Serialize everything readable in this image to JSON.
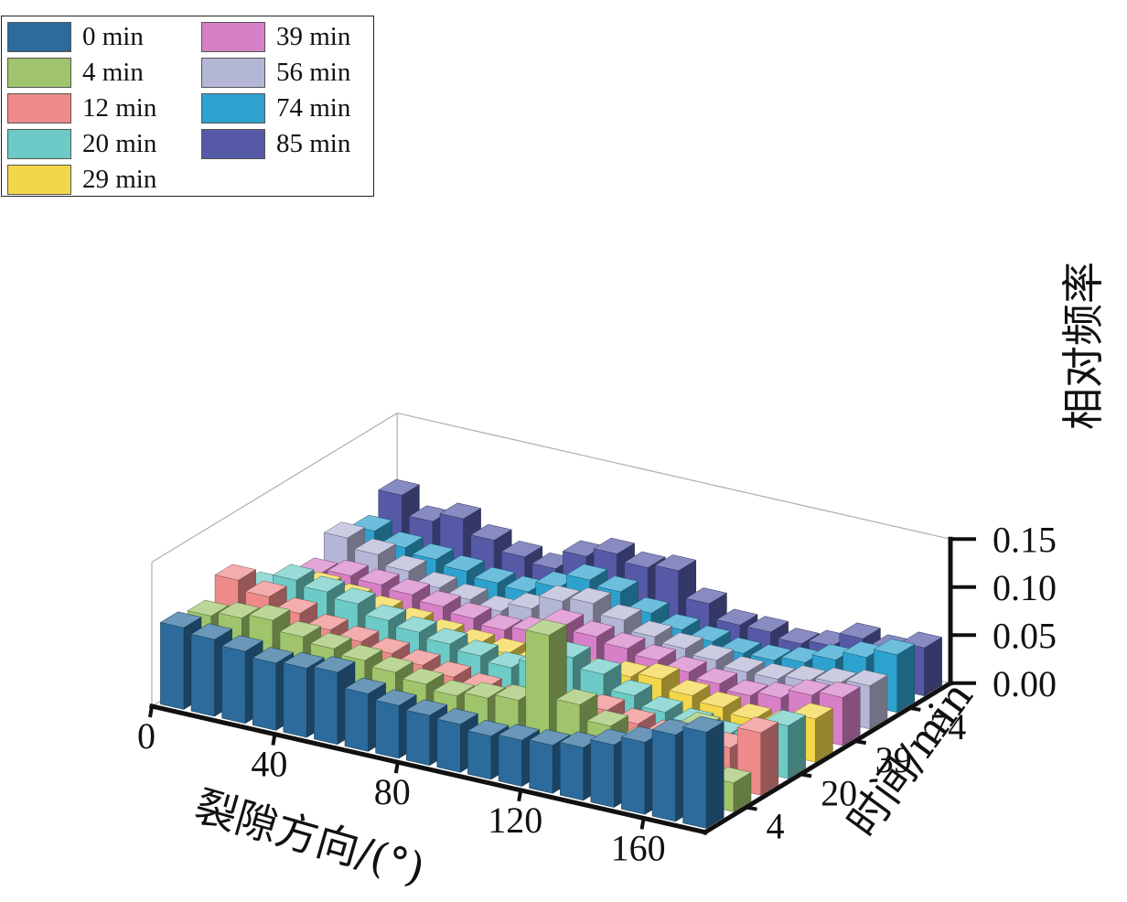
{
  "chart_data": {
    "type": "bar3d",
    "title": "",
    "xlabel": "裂隙方向/(°)",
    "ylabel": "时间/min",
    "zlabel": "相对频率",
    "x_ticks": [
      "0",
      "40",
      "80",
      "120",
      "160"
    ],
    "y_ticks": [
      "4",
      "20",
      "39",
      "74"
    ],
    "z_ticks": [
      "0.00",
      "0.05",
      "0.10",
      "0.15"
    ],
    "zlim": [
      0,
      0.15
    ],
    "categories": [
      0,
      10,
      20,
      30,
      40,
      50,
      60,
      70,
      80,
      90,
      100,
      110,
      120,
      130,
      140,
      150,
      160,
      170
    ],
    "series": [
      {
        "name": "0 min",
        "color": "#2c6b9b",
        "values": [
          0.085,
          0.08,
          0.075,
          0.07,
          0.072,
          0.075,
          0.06,
          0.055,
          0.052,
          0.05,
          0.045,
          0.048,
          0.05,
          0.055,
          0.065,
          0.075,
          0.09,
          0.1
        ]
      },
      {
        "name": "4 min",
        "color": "#9fc46b",
        "values": [
          0.08,
          0.085,
          0.09,
          0.08,
          0.075,
          0.07,
          0.065,
          0.06,
          0.055,
          0.06,
          0.065,
          0.14,
          0.075,
          0.06,
          0.05,
          0.06,
          0.08,
          0.03
        ]
      },
      {
        "name": "12 min",
        "color": "#ee8a8a",
        "values": [
          0.1,
          0.09,
          0.08,
          0.07,
          0.065,
          0.06,
          0.055,
          0.05,
          0.045,
          0.04,
          0.042,
          0.048,
          0.052,
          0.045,
          0.04,
          0.035,
          0.042,
          0.065
        ]
      },
      {
        "name": "20 min",
        "color": "#6ccbc6",
        "values": [
          0.075,
          0.09,
          0.085,
          0.08,
          0.07,
          0.065,
          0.06,
          0.055,
          0.05,
          0.06,
          0.075,
          0.065,
          0.05,
          0.04,
          0.035,
          0.03,
          0.035,
          0.055
        ]
      },
      {
        "name": "29 min",
        "color": "#f4d64a",
        "values": [
          0.06,
          0.065,
          0.06,
          0.055,
          0.05,
          0.045,
          0.042,
          0.04,
          0.038,
          0.035,
          0.04,
          0.045,
          0.05,
          0.04,
          0.035,
          0.03,
          0.03,
          0.045
        ]
      },
      {
        "name": "39 min",
        "color": "#d780c8",
        "values": [
          0.055,
          0.06,
          0.058,
          0.055,
          0.05,
          0.045,
          0.04,
          0.045,
          0.06,
          0.055,
          0.05,
          0.045,
          0.04,
          0.035,
          0.03,
          0.035,
          0.045,
          0.05
        ]
      },
      {
        "name": "56 min",
        "color": "#b4b6d6",
        "values": [
          0.075,
          0.065,
          0.055,
          0.045,
          0.04,
          0.035,
          0.045,
          0.06,
          0.065,
          0.055,
          0.045,
          0.04,
          0.035,
          0.03,
          0.03,
          0.035,
          0.04,
          0.045
        ]
      },
      {
        "name": "74 min",
        "color": "#2ea2cf",
        "values": [
          0.065,
          0.055,
          0.05,
          0.045,
          0.04,
          0.038,
          0.05,
          0.065,
          0.06,
          0.045,
          0.035,
          0.03,
          0.025,
          0.025,
          0.03,
          0.04,
          0.05,
          0.06
        ]
      },
      {
        "name": "85 min",
        "color": "#5559a6",
        "values": [
          0.085,
          0.065,
          0.075,
          0.06,
          0.05,
          0.045,
          0.065,
          0.075,
          0.068,
          0.072,
          0.045,
          0.03,
          0.03,
          0.025,
          0.03,
          0.045,
          0.04,
          0.05
        ]
      }
    ],
    "legend": {
      "position": "top-left",
      "columns": 2
    },
    "grid": false
  }
}
